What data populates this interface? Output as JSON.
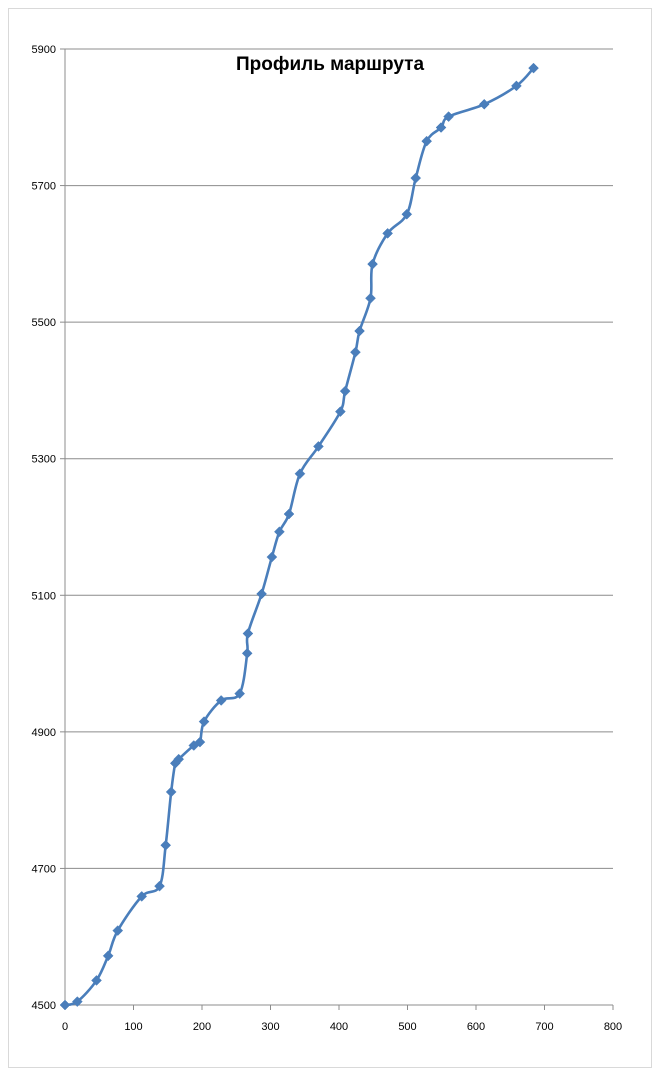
{
  "chart_data": {
    "type": "line",
    "title": "Профиль маршрута",
    "xlabel": "",
    "ylabel": "",
    "xlim": [
      0,
      800
    ],
    "ylim": [
      4500,
      5900
    ],
    "x_ticks": [
      0,
      100,
      200,
      300,
      400,
      500,
      600,
      700,
      800
    ],
    "y_ticks": [
      4500,
      4700,
      4900,
      5100,
      5300,
      5500,
      5700,
      5900
    ],
    "grid": "horizontal",
    "legend": "none",
    "marker": "diamond",
    "series": [
      {
        "color": "#4a7ebb",
        "points": [
          [
            0,
            4500
          ],
          [
            18,
            4505
          ],
          [
            46,
            4536
          ],
          [
            63,
            4572
          ],
          [
            77,
            4609
          ],
          [
            112,
            4659
          ],
          [
            138,
            4674
          ],
          [
            147,
            4734
          ],
          [
            155,
            4812
          ],
          [
            161,
            4854
          ],
          [
            166,
            4860
          ],
          [
            188,
            4880
          ],
          [
            197,
            4885
          ],
          [
            203,
            4915
          ],
          [
            228,
            4946
          ],
          [
            255,
            4956
          ],
          [
            266,
            5015
          ],
          [
            267,
            5044
          ],
          [
            287,
            5102
          ],
          [
            302,
            5156
          ],
          [
            313,
            5193
          ],
          [
            327,
            5219
          ],
          [
            343,
            5278
          ],
          [
            370,
            5318
          ],
          [
            402,
            5369
          ],
          [
            409,
            5399
          ],
          [
            424,
            5456
          ],
          [
            430,
            5487
          ],
          [
            446,
            5535
          ],
          [
            449,
            5585
          ],
          [
            471,
            5630
          ],
          [
            499,
            5658
          ],
          [
            512,
            5711
          ],
          [
            528,
            5765
          ],
          [
            549,
            5785
          ],
          [
            560,
            5801
          ],
          [
            612,
            5819
          ],
          [
            659,
            5846
          ],
          [
            684,
            5872
          ]
        ]
      }
    ]
  }
}
